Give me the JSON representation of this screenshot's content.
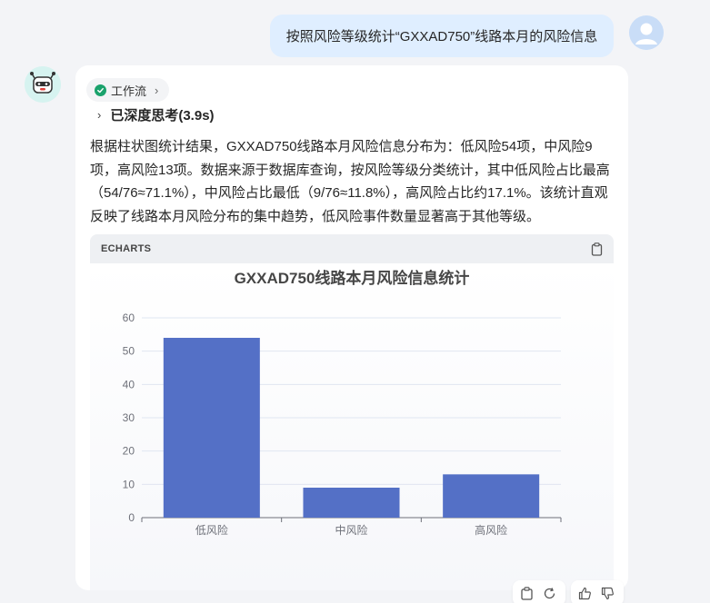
{
  "user_message": "按照风险等级统计“GXXAD750”线路本月的风险信息",
  "workflow": {
    "label": "工作流"
  },
  "thinking": {
    "label": "已深度思考(3.9s)"
  },
  "answer": "根据柱状图统计结果，GXXAD750线路本月风险信息分布为：低风险54项，中风险9项，高风险13项。数据来源于数据库查询，按风险等级分类统计，其中低风险占比最高（54/76≈71.1%），中风险占比最低（9/76≈11.8%），高风险占比约17.1%。该统计直观反映了线路本月风险分布的集中趋势，低风险事件数量显著高于其他等级。",
  "echarts": {
    "label": "ECHARTS"
  },
  "colors": {
    "bar": "#5470c6",
    "user_bubble": "#dfeeff",
    "check": "#1aa26c"
  },
  "icons": [
    "user-avatar",
    "bot-avatar",
    "check-icon",
    "chevron-right-icon",
    "copy-icon",
    "refresh-icon",
    "thumbs-up-icon",
    "thumbs-down-icon"
  ],
  "chart_data": {
    "type": "bar",
    "title": "GXXAD750线路本月风险信息统计",
    "categories": [
      "低风险",
      "中风险",
      "高风险"
    ],
    "values": [
      54,
      9,
      13
    ],
    "ylim": [
      0,
      60
    ],
    "yticks": [
      0,
      10,
      20,
      30,
      40,
      50,
      60
    ],
    "grid": true,
    "xlabel": "",
    "ylabel": ""
  }
}
